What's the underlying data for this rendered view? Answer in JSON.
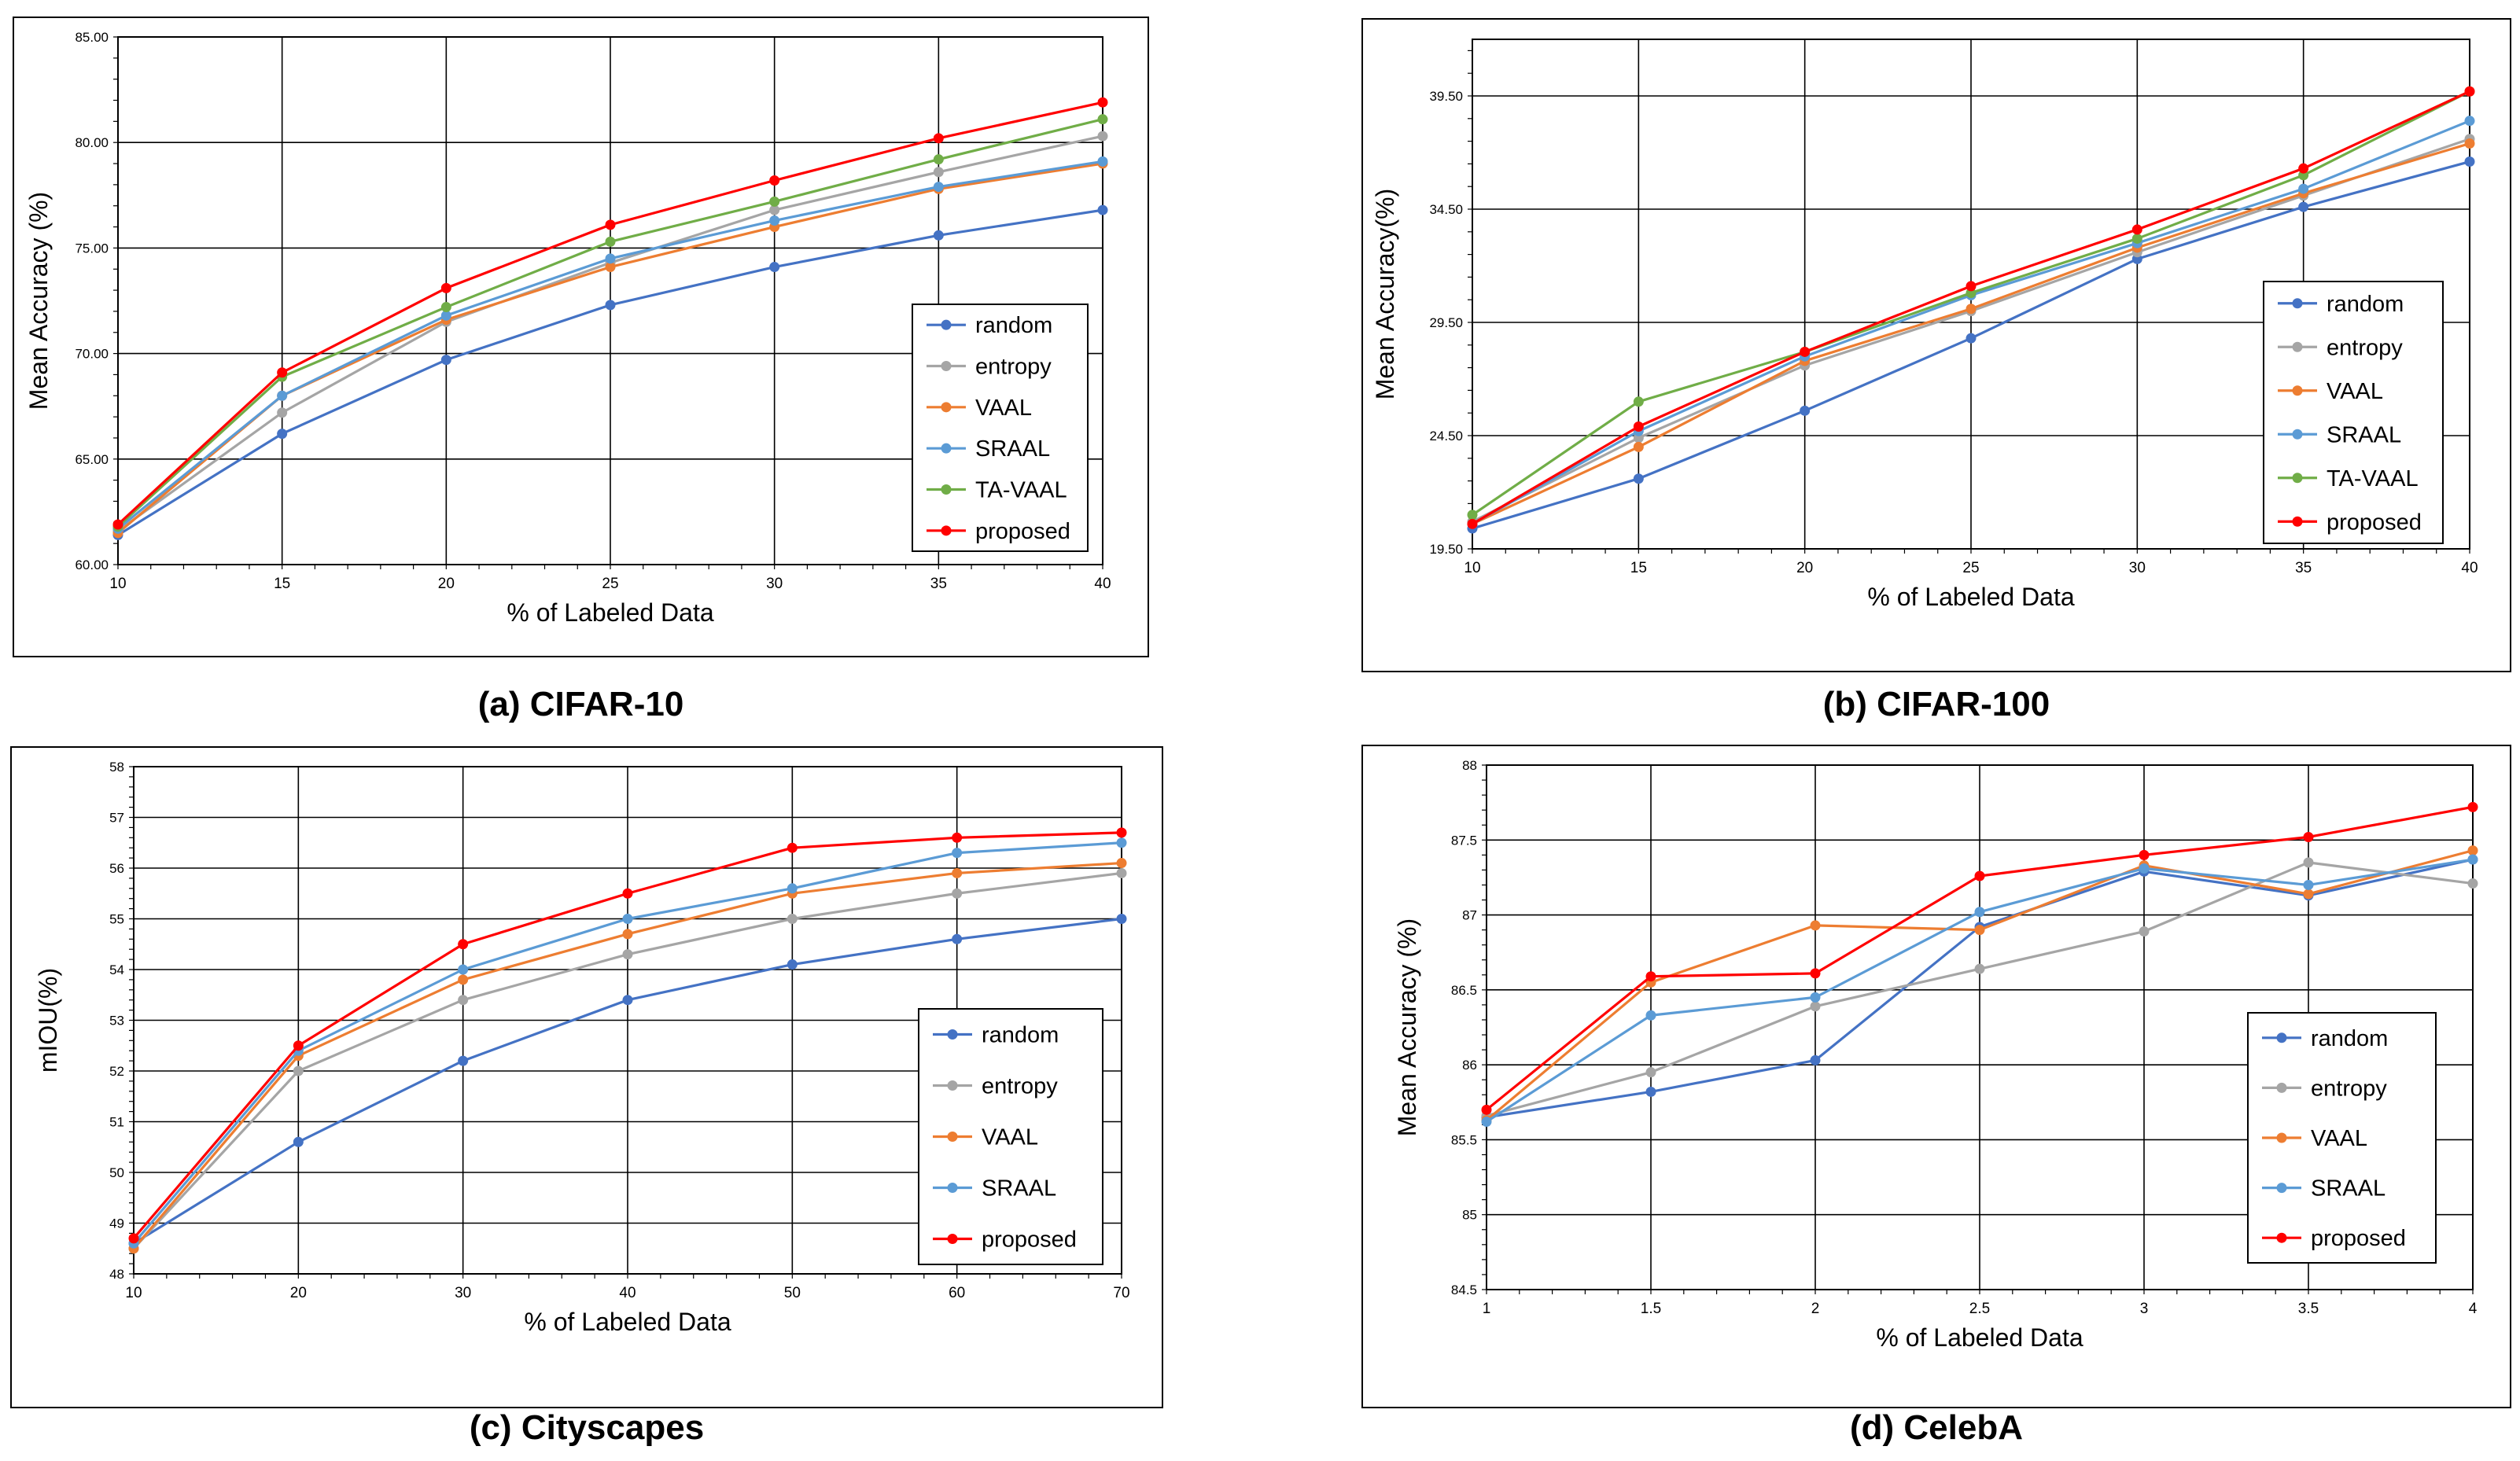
{
  "series_colors": {
    "random": "#4472C4",
    "entropy": "#A5A5A5",
    "VAAL": "#ED7D31",
    "SRAAL": "#5B9BD5",
    "TA-VAAL": "#70AD47",
    "proposed": "#FF0000"
  },
  "chart_data": [
    {
      "type": "line",
      "caption": "(a) CIFAR-10",
      "xlabel": "% of Labeled Data",
      "ylabel": "Mean Accuracy (%)",
      "x": [
        10,
        15,
        20,
        25,
        30,
        35,
        40
      ],
      "x_ticks": [
        "10",
        "15",
        "20",
        "25",
        "30",
        "35",
        "40"
      ],
      "ylim": [
        60,
        85
      ],
      "y_ticks": [
        "60.00",
        "65.00",
        "70.00",
        "75.00",
        "80.00",
        "85.00"
      ],
      "y_tick_values": [
        60,
        65,
        70,
        75,
        80,
        85
      ],
      "grid": true,
      "legend_position": "right",
      "series": [
        {
          "name": "random",
          "values": [
            61.4,
            66.2,
            69.7,
            72.3,
            74.1,
            75.6,
            76.8
          ]
        },
        {
          "name": "entropy",
          "values": [
            61.6,
            67.2,
            71.5,
            74.3,
            76.8,
            78.6,
            80.3
          ]
        },
        {
          "name": "VAAL",
          "values": [
            61.5,
            68.0,
            71.6,
            74.1,
            76.0,
            77.8,
            79.0
          ]
        },
        {
          "name": "SRAAL",
          "values": [
            61.7,
            68.0,
            71.8,
            74.5,
            76.3,
            77.9,
            79.1
          ]
        },
        {
          "name": "TA-VAAL",
          "values": [
            61.8,
            68.9,
            72.2,
            75.3,
            77.2,
            79.2,
            81.1
          ]
        },
        {
          "name": "proposed",
          "values": [
            61.9,
            69.1,
            73.1,
            76.1,
            78.2,
            80.2,
            81.9
          ]
        }
      ]
    },
    {
      "type": "line",
      "caption": "(b) CIFAR-100",
      "xlabel": "% of Labeled Data",
      "ylabel": "Mean Accuracy(%)",
      "x": [
        10,
        15,
        20,
        25,
        30,
        35,
        40
      ],
      "x_ticks": [
        "10",
        "15",
        "20",
        "25",
        "30",
        "35",
        "40"
      ],
      "ylim": [
        19.5,
        42
      ],
      "y_ticks": [
        "19.50",
        "24.50",
        "29.50",
        "34.50",
        "39.50"
      ],
      "y_tick_values": [
        19.5,
        24.5,
        29.5,
        34.5,
        39.5
      ],
      "grid": true,
      "legend_position": "right",
      "series": [
        {
          "name": "random",
          "values": [
            20.4,
            22.6,
            25.6,
            28.8,
            32.3,
            34.6,
            36.6
          ]
        },
        {
          "name": "entropy",
          "values": [
            20.7,
            24.4,
            27.6,
            30.0,
            32.6,
            35.1,
            37.6
          ]
        },
        {
          "name": "VAAL",
          "values": [
            20.6,
            24.0,
            27.8,
            30.1,
            32.8,
            35.2,
            37.4
          ]
        },
        {
          "name": "SRAAL",
          "values": [
            20.6,
            24.7,
            28.0,
            30.7,
            33.0,
            35.4,
            38.4
          ]
        },
        {
          "name": "TA-VAAL",
          "values": [
            21.0,
            26.0,
            28.2,
            30.8,
            33.2,
            36.0,
            39.7
          ]
        },
        {
          "name": "proposed",
          "values": [
            20.6,
            24.9,
            28.2,
            31.1,
            33.6,
            36.3,
            39.7
          ]
        }
      ]
    },
    {
      "type": "line",
      "caption": "(c) Cityscapes",
      "xlabel": "% of Labeled Data",
      "ylabel": "mIOU(%)",
      "x": [
        10,
        20,
        30,
        40,
        50,
        60,
        70
      ],
      "x_ticks": [
        "10",
        "20",
        "30",
        "40",
        "50",
        "60",
        "70"
      ],
      "ylim": [
        48,
        58
      ],
      "y_ticks": [
        "48",
        "49",
        "50",
        "51",
        "52",
        "53",
        "54",
        "55",
        "56",
        "57",
        "58"
      ],
      "y_tick_values": [
        48,
        49,
        50,
        51,
        52,
        53,
        54,
        55,
        56,
        57,
        58
      ],
      "grid": true,
      "legend_position": "right",
      "series": [
        {
          "name": "random",
          "values": [
            48.6,
            50.6,
            52.2,
            53.4,
            54.1,
            54.6,
            55.0
          ]
        },
        {
          "name": "entropy",
          "values": [
            48.5,
            52.0,
            53.4,
            54.3,
            55.0,
            55.5,
            55.9
          ]
        },
        {
          "name": "VAAL",
          "values": [
            48.5,
            52.3,
            53.8,
            54.7,
            55.5,
            55.9,
            56.1
          ]
        },
        {
          "name": "SRAAL",
          "values": [
            48.6,
            52.4,
            54.0,
            55.0,
            55.6,
            56.3,
            56.5
          ]
        },
        {
          "name": "proposed",
          "values": [
            48.7,
            52.5,
            54.5,
            55.5,
            56.4,
            56.6,
            56.7
          ]
        }
      ]
    },
    {
      "type": "line",
      "caption": "(d) CelebA",
      "xlabel": "% of Labeled Data",
      "ylabel": "Mean Accuracy (%)",
      "x": [
        1,
        1.5,
        2,
        2.5,
        3,
        3.5,
        4
      ],
      "x_ticks": [
        "1",
        "1.5",
        "2",
        "2.5",
        "3",
        "3.5",
        "4"
      ],
      "ylim": [
        84.5,
        88
      ],
      "y_ticks": [
        "84.5",
        "85",
        "85.5",
        "86",
        "86.5",
        "87",
        "87.5",
        "88"
      ],
      "y_tick_values": [
        84.5,
        85,
        85.5,
        86,
        86.5,
        87,
        87.5,
        88
      ],
      "grid": true,
      "legend_position": "right",
      "series": [
        {
          "name": "random",
          "values": [
            85.65,
            85.82,
            86.03,
            86.92,
            87.29,
            87.13,
            87.37
          ]
        },
        {
          "name": "entropy",
          "values": [
            85.66,
            85.95,
            86.39,
            86.64,
            86.89,
            87.35,
            87.21
          ]
        },
        {
          "name": "VAAL",
          "values": [
            85.63,
            86.55,
            86.93,
            86.9,
            87.33,
            87.14,
            87.43
          ]
        },
        {
          "name": "SRAAL",
          "values": [
            85.62,
            86.33,
            86.45,
            87.02,
            87.31,
            87.2,
            87.37
          ]
        },
        {
          "name": "proposed",
          "values": [
            85.7,
            86.59,
            86.61,
            87.26,
            87.4,
            87.52,
            87.72
          ]
        }
      ]
    }
  ]
}
